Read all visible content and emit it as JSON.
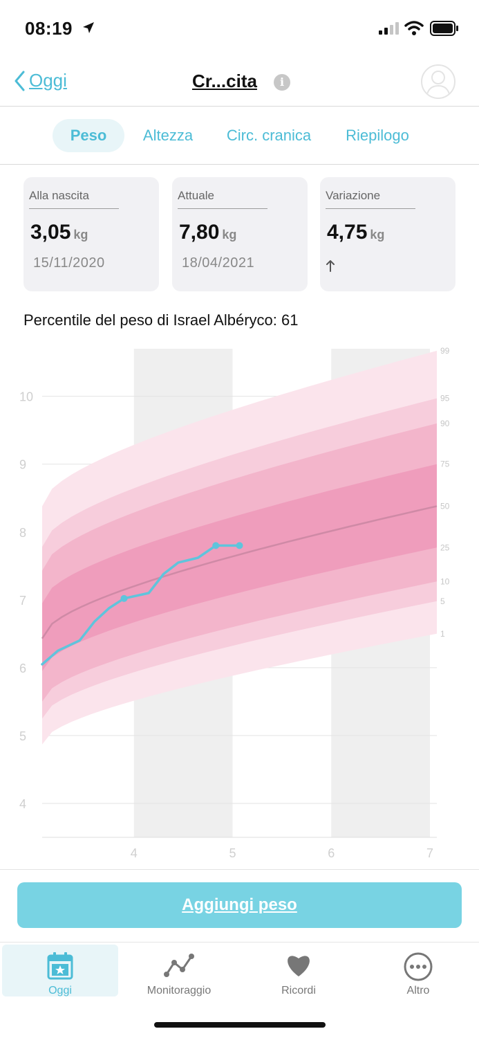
{
  "status_bar": {
    "time": "08:19"
  },
  "nav": {
    "back_label": "Oggi",
    "title": "Cr...cita",
    "info_glyph": "i"
  },
  "tabs": [
    {
      "label": "Peso",
      "active": true
    },
    {
      "label": "Altezza",
      "active": false
    },
    {
      "label": "Circ. cranica",
      "active": false
    },
    {
      "label": "Riepilogo",
      "active": false
    }
  ],
  "cards": [
    {
      "label": "Alla nascita",
      "value": "3,05",
      "unit": "kg",
      "date": "15/11/2020"
    },
    {
      "label": "Attuale",
      "value": "7,80",
      "unit": "kg",
      "date": "18/04/2021"
    },
    {
      "label": "Variazione",
      "value": "4,75",
      "unit": "kg",
      "trend": "up"
    }
  ],
  "percentile_text": "Percentile del peso di Israel Albéryco: 61",
  "chart_data": {
    "type": "area",
    "x_ticks": [
      "4",
      "5",
      "6",
      "7"
    ],
    "y_ticks": [
      "10",
      "9",
      "8",
      "7",
      "6",
      "5",
      "4"
    ],
    "xlim": [
      3.07,
      7.07
    ],
    "ylim": [
      3.5,
      10.7
    ],
    "shaded_months": [
      [
        4,
        5
      ],
      [
        6,
        7
      ]
    ],
    "percentile_labels": [
      "99",
      "95",
      "90",
      "75",
      "50",
      "25",
      "10",
      "5",
      "1"
    ],
    "percentile_bands": {
      "x": [
        3.07,
        7.07
      ],
      "p1": [
        4.87,
        6.5
      ],
      "p5": [
        5.25,
        6.98
      ],
      "p10": [
        5.5,
        7.27
      ],
      "p25": [
        5.95,
        7.77
      ],
      "p50": [
        6.43,
        8.38
      ],
      "p75": [
        6.95,
        9.0
      ],
      "p90": [
        7.43,
        9.6
      ],
      "p95": [
        7.78,
        9.97
      ],
      "p99": [
        8.38,
        10.67
      ]
    },
    "series": [
      {
        "x": [
          3.07,
          3.23,
          3.45,
          3.6,
          3.75,
          3.9,
          4.15,
          4.3,
          4.45,
          4.65,
          4.83,
          5.07
        ],
        "y": [
          6.05,
          6.25,
          6.4,
          6.68,
          6.88,
          7.02,
          7.1,
          7.38,
          7.55,
          7.62,
          7.8,
          7.8
        ]
      }
    ],
    "markers": [
      [
        3.9,
        7.02
      ],
      [
        4.83,
        7.8
      ],
      [
        5.07,
        7.8
      ]
    ],
    "colors": {
      "series": "#5fc4dc",
      "median": "#cf8aa6",
      "band_outer": "#fbe4ec",
      "band_mid": "#f7cddc",
      "band_inner": "#f3b5cb",
      "band_center": "#ef9dbc",
      "shade": "#efefef"
    }
  },
  "add_button": {
    "label": "Aggiungi peso"
  },
  "tab_bar": [
    {
      "label": "Oggi",
      "icon": "calendar-icon",
      "active": true
    },
    {
      "label": "Monitoraggio",
      "icon": "chart-line-icon",
      "active": false
    },
    {
      "label": "Ricordi",
      "icon": "heart-icon",
      "active": false
    },
    {
      "label": "Altro",
      "icon": "more-icon",
      "active": false
    }
  ],
  "colors": {
    "accent": "#4cbcd6",
    "button": "#78d3e3"
  }
}
